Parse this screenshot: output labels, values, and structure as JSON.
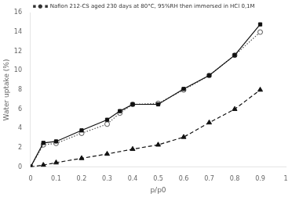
{
  "chart_data": {
    "type": "line",
    "title": "▪ ● ▪ Nafion 212-CS aged 230 days at 80°C, 95%RH then immersed in HCl 0,1M",
    "x_label": "p/p0",
    "y_label": "Water uptake (%)",
    "xlim": [
      0,
      1.0
    ],
    "ylim": [
      0,
      16
    ],
    "xticks": [
      0,
      0.1,
      0.2,
      0.3,
      0.4,
      0.5,
      0.6,
      0.7,
      0.8,
      0.9,
      1
    ],
    "yticks": [
      0,
      2,
      4,
      6,
      8,
      10,
      12,
      14,
      16
    ],
    "grid": false,
    "series": [
      {
        "x": [
          0,
          0.05,
          0.1,
          0.2,
          0.3,
          0.35,
          0.4,
          0.5,
          0.6,
          0.7,
          0.8,
          0.9
        ],
        "values": [
          0,
          2.5,
          2.65,
          3.8,
          4.9,
          5.8,
          6.5,
          6.5,
          8.1,
          9.5,
          11.6,
          14.8
        ],
        "color": "#111111",
        "marker": "square",
        "line_style": "solid"
      },
      {
        "x": [
          0,
          0.05,
          0.1,
          0.2,
          0.3,
          0.35,
          0.4,
          0.5,
          0.6,
          0.7,
          0.8,
          0.9
        ],
        "values": [
          0,
          2.3,
          2.45,
          3.5,
          4.45,
          5.6,
          6.5,
          6.6,
          8.0,
          9.5,
          11.6,
          14.0
        ],
        "color": "#555555",
        "marker": "open_circle",
        "line_style": "dotted"
      },
      {
        "x": [
          0,
          0.05,
          0.1,
          0.2,
          0.3,
          0.4,
          0.5,
          0.6,
          0.7,
          0.8,
          0.9
        ],
        "values": [
          0,
          0.2,
          0.45,
          0.9,
          1.35,
          1.85,
          2.3,
          3.1,
          4.6,
          6.0,
          8.0
        ],
        "color": "#111111",
        "marker": "triangle",
        "line_style": "dashed"
      }
    ]
  }
}
